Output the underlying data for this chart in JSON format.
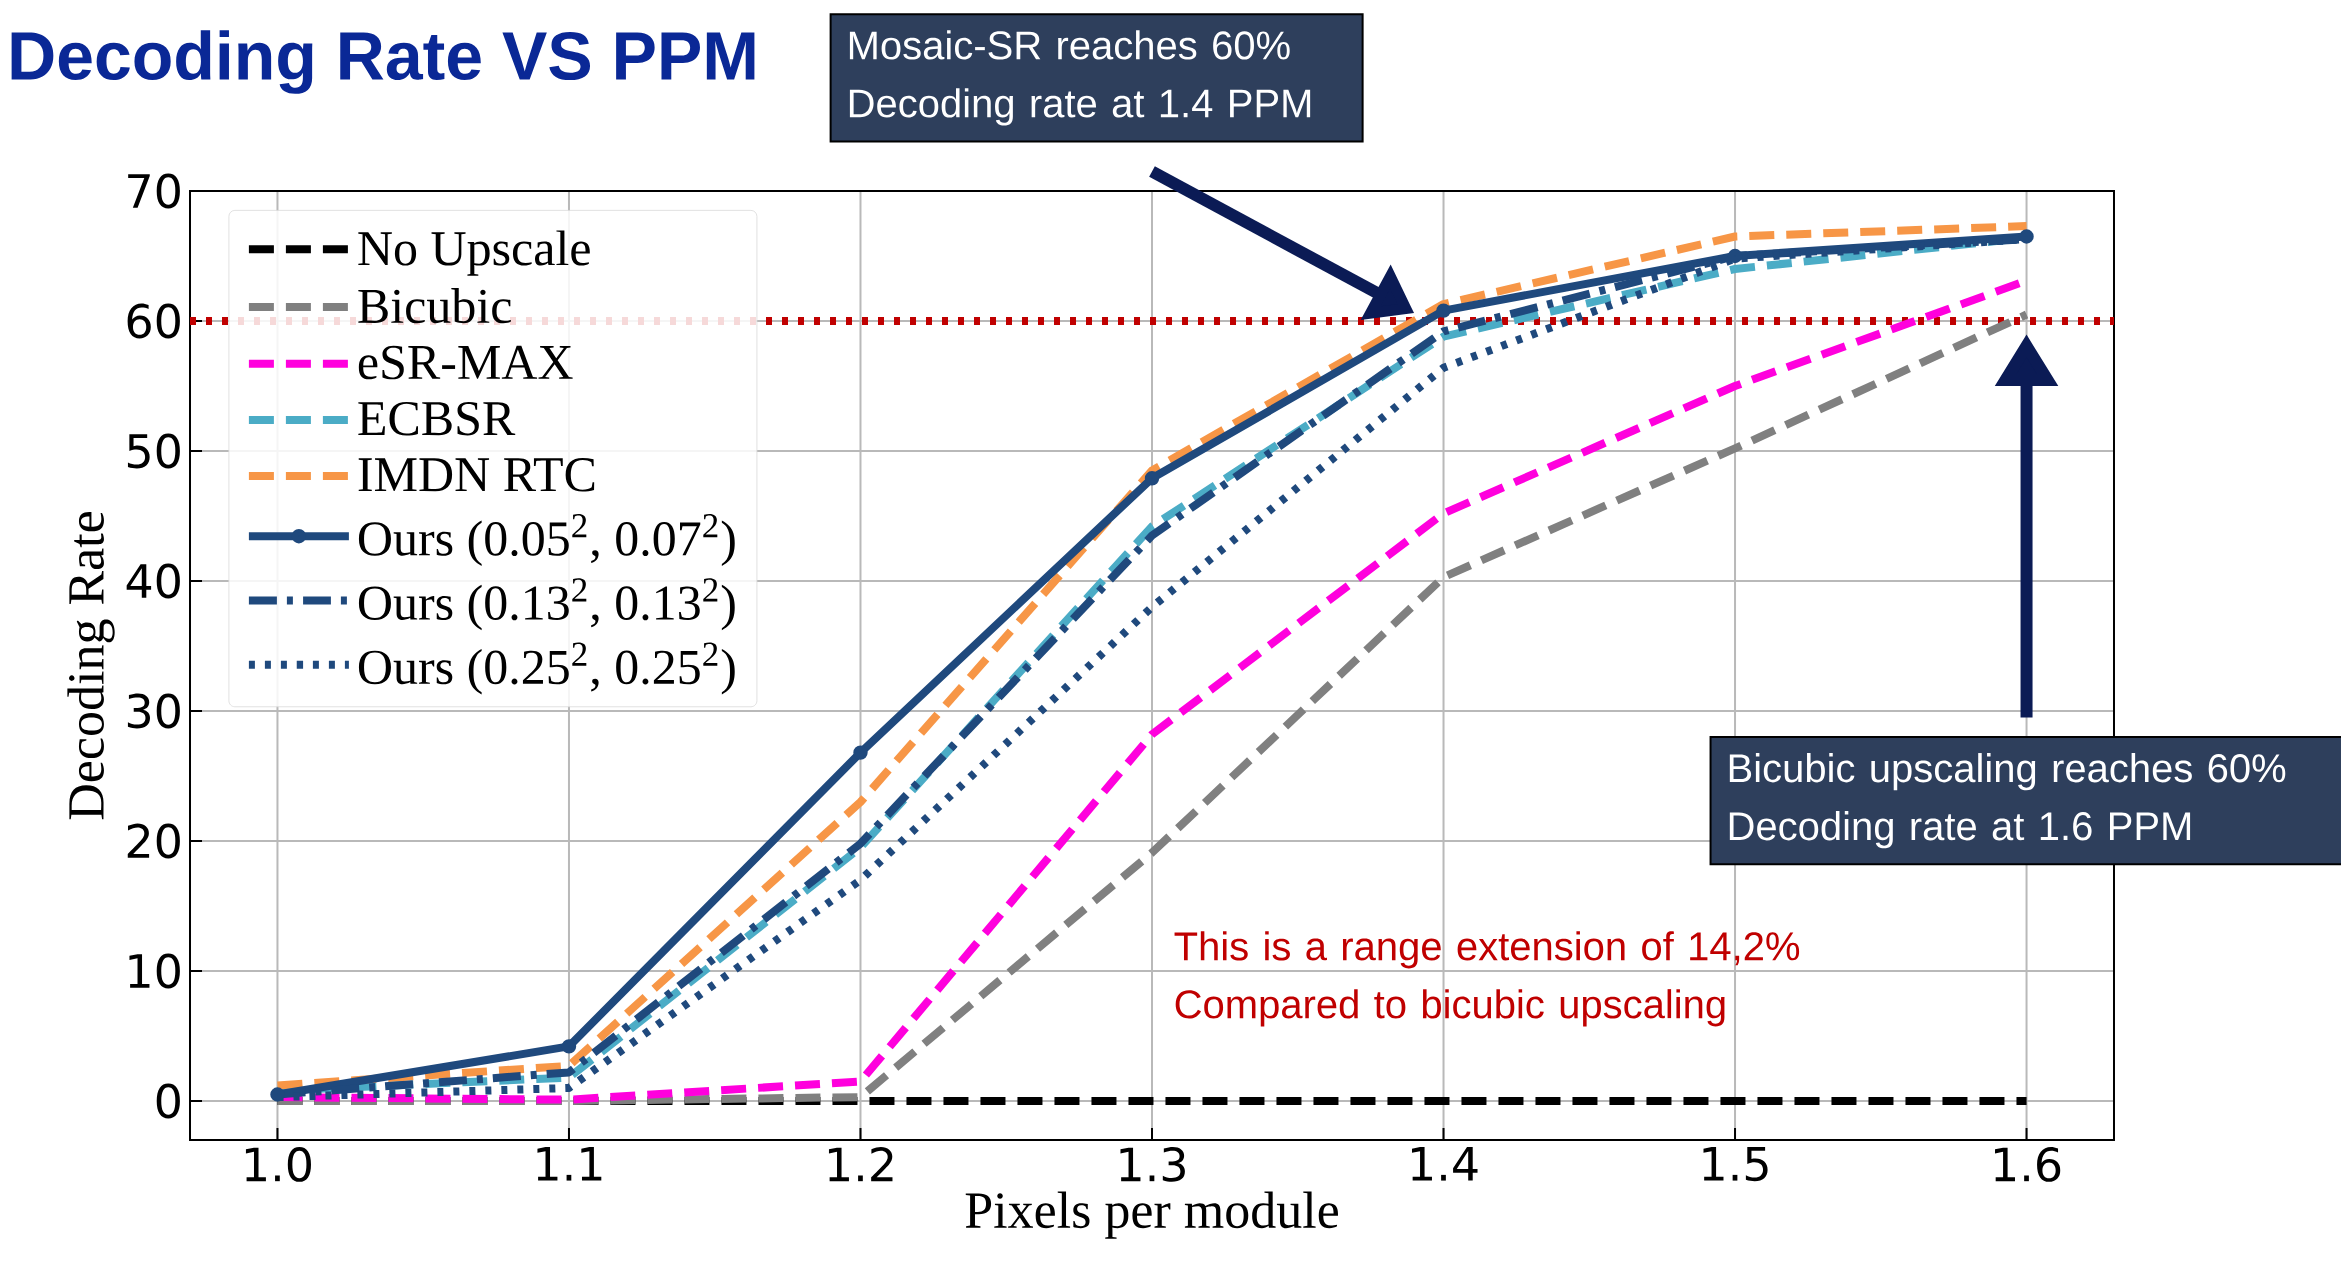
{
  "chart_data": {
    "type": "line",
    "title": "Decoding Rate VS PPM",
    "xlabel": "Pixels per module",
    "ylabel": "Decoding Rate",
    "x": [
      1.0,
      1.1,
      1.2,
      1.3,
      1.4,
      1.5,
      1.6
    ],
    "series": [
      {
        "name": "No Upscale",
        "color": "#000000",
        "line_style": "dashed",
        "values": [
          0,
          0,
          0,
          0,
          0,
          0,
          0
        ]
      },
      {
        "name": "Bicubic",
        "color": "#808080",
        "line_style": "dashed",
        "values": [
          0,
          0,
          0.3,
          19.1,
          40.3,
          50.2,
          60.5
        ]
      },
      {
        "name": "eSR-MAX",
        "color": "#ff00dd",
        "line_style": "dashed",
        "values": [
          0.3,
          0.1,
          1.5,
          28.2,
          45.2,
          55,
          63.1
        ]
      },
      {
        "name": "ECBSR",
        "color": "#4bacc6",
        "line_style": "dashed",
        "values": [
          0.8,
          1.8,
          19.5,
          44.2,
          58.8,
          64,
          66.4
        ]
      },
      {
        "name": "IMDN RTC",
        "color": "#f79646",
        "line_style": "dashed",
        "values": [
          1.2,
          2.7,
          23,
          48.5,
          61.3,
          66.5,
          67.3
        ]
      },
      {
        "name": "Ours (0.05$^{2}$, 0.07$^{2}$)",
        "color": "#1f497d",
        "line_style": "solid",
        "marker": "circle",
        "values": [
          0.5,
          4.2,
          26.8,
          47.9,
          60.8,
          65,
          66.5
        ]
      },
      {
        "name": "Ours (0.13$^{2}$, 0.13$^{2}$)",
        "color": "#1f497d",
        "line_style": "dashdot",
        "values": [
          0.5,
          2.2,
          19.8,
          43.5,
          59.2,
          65,
          66.3
        ]
      },
      {
        "name": "Ours (0.25$^{2}$, 0.25$^{2}$)",
        "color": "#1f497d",
        "line_style": "dotted",
        "values": [
          0.3,
          1.0,
          17,
          38,
          56.4,
          64.8,
          66.3
        ]
      }
    ],
    "xlim": [
      0.97,
      1.63
    ],
    "ylim": [
      -3,
      70
    ],
    "xticks": [
      {
        "value": 1.0,
        "label": "1.0"
      },
      {
        "value": 1.1,
        "label": "1.1"
      },
      {
        "value": 1.2,
        "label": "1.2"
      },
      {
        "value": 1.3,
        "label": "1.3"
      },
      {
        "value": 1.4,
        "label": "1.4"
      },
      {
        "value": 1.5,
        "label": "1.5"
      },
      {
        "value": 1.6,
        "label": "1.6"
      }
    ],
    "yticks": [
      0,
      10,
      20,
      30,
      40,
      50,
      60,
      70
    ],
    "grid": true,
    "legend": "top left",
    "ref_lines": [
      {
        "axis": "y",
        "value": 60,
        "color": "#c00000",
        "line_style": "dotted"
      }
    ],
    "annotations": [
      "Mosaic-SR reaches 60% Decoding rate at 1.4 PPM",
      "Bicubic upscaling reaches 60% Decoding rate at 1.6 PPM",
      "This is a range extension of 14,2% Compared to bicubic upscaling"
    ]
  }
}
